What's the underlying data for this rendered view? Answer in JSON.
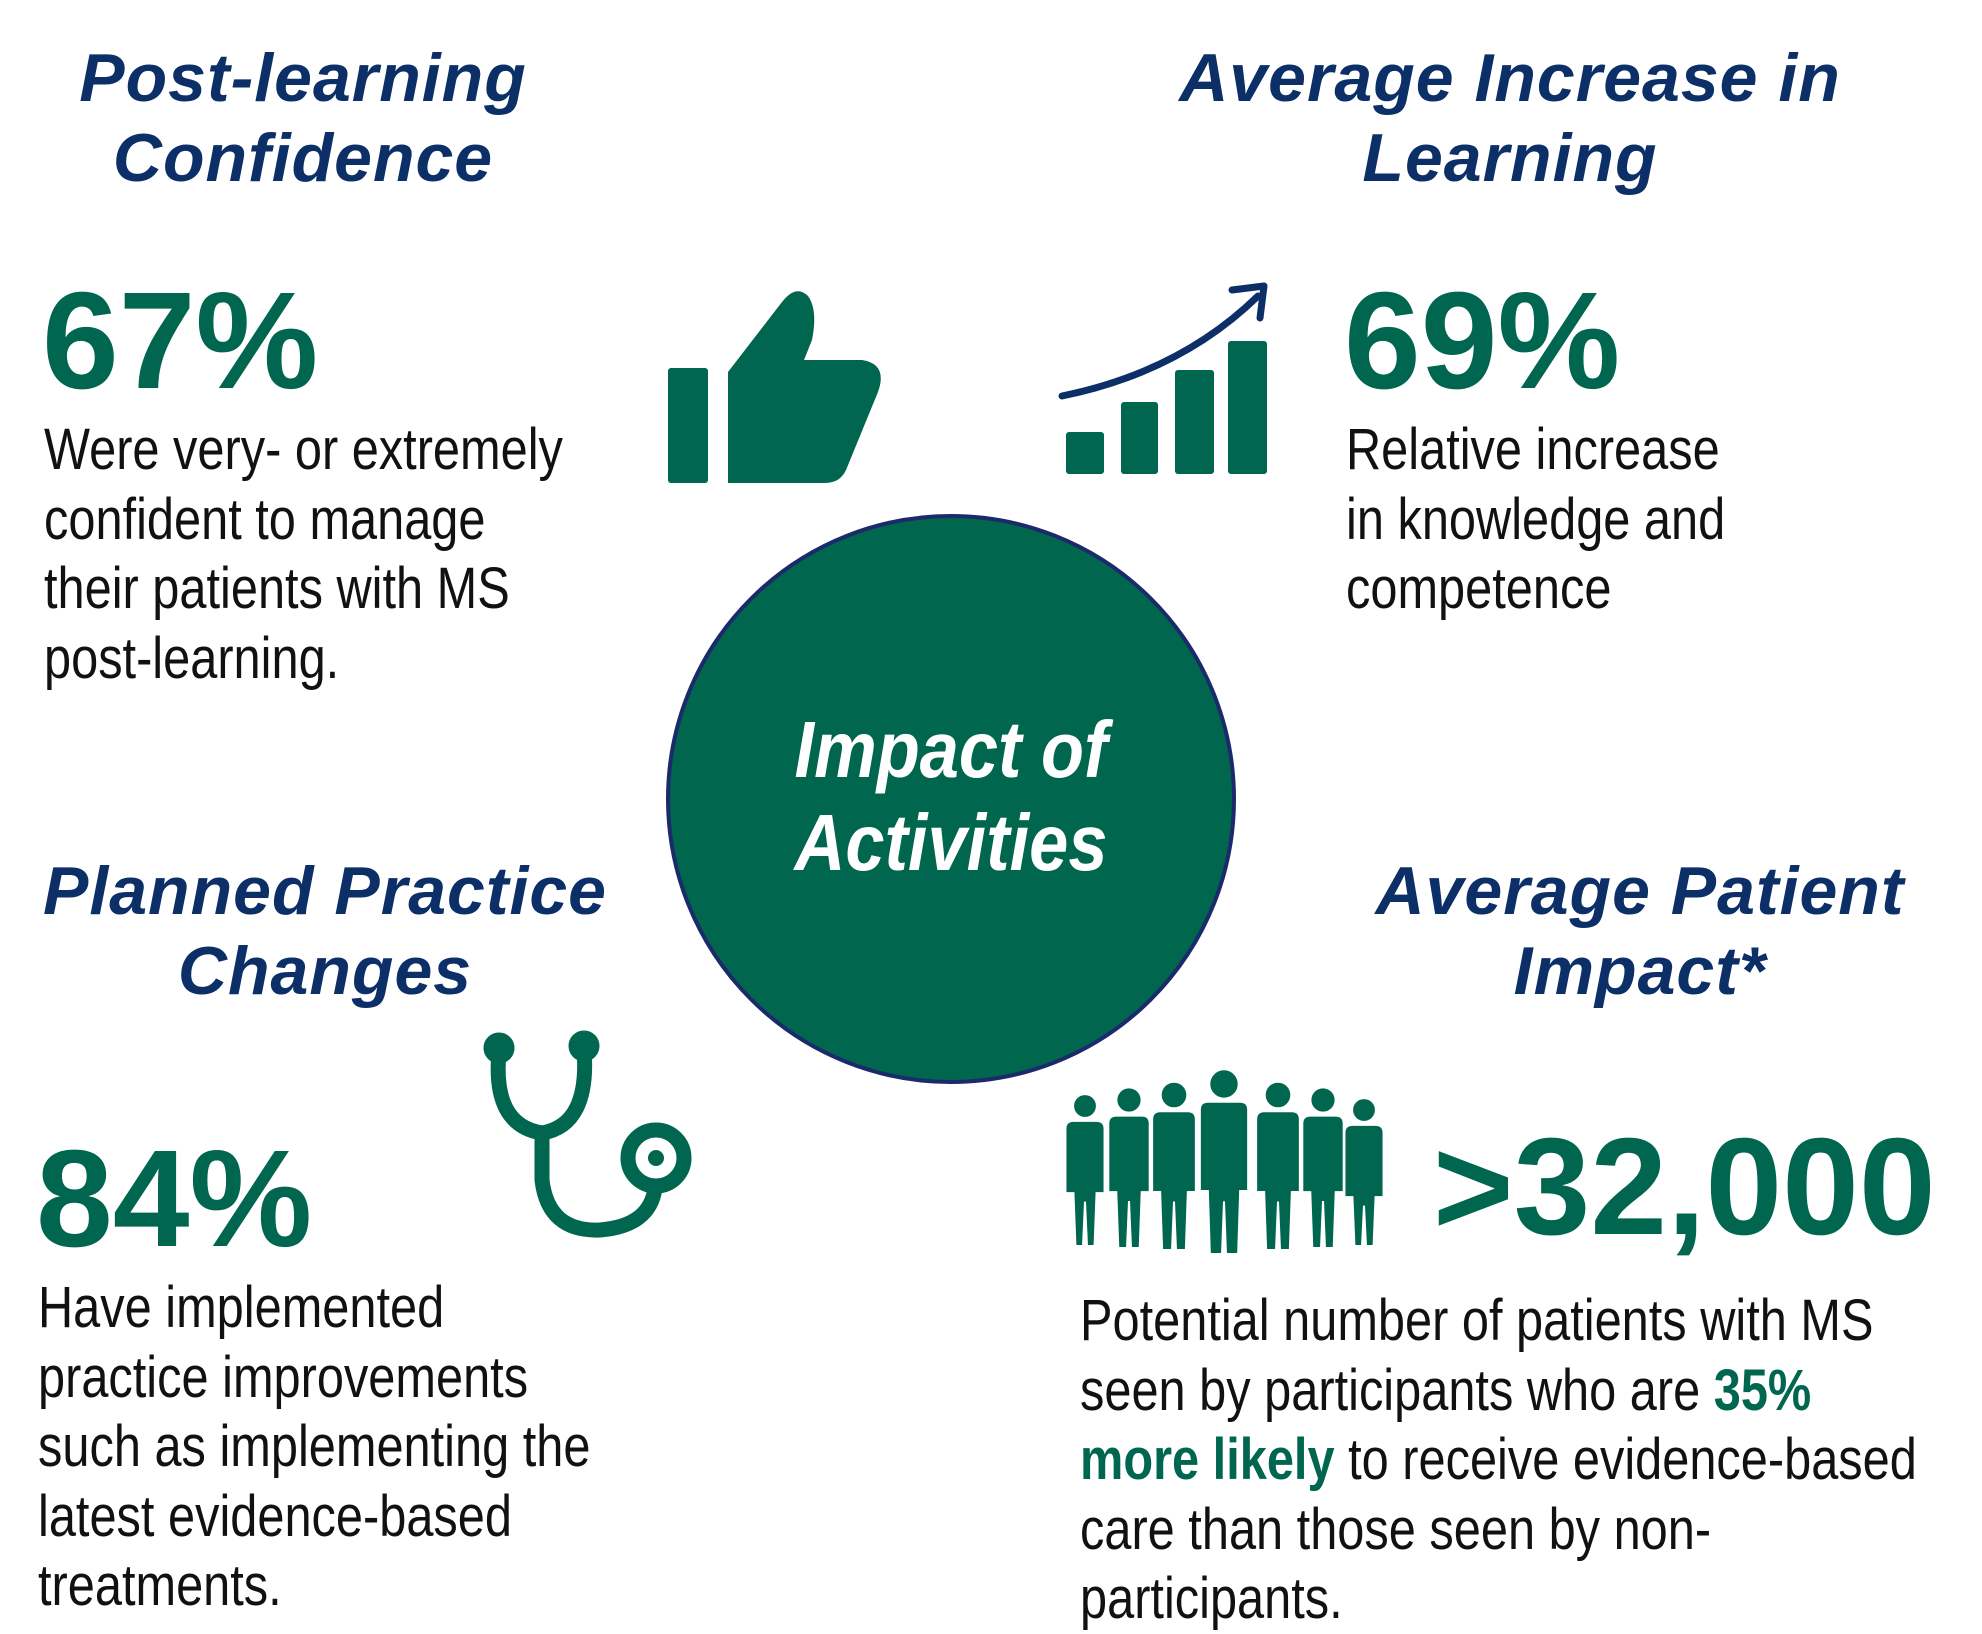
{
  "center": {
    "lines": [
      "Impact of",
      "Activities"
    ]
  },
  "sections": [
    {
      "title": [
        "Post-learning",
        "Confidence"
      ],
      "stat": "67%",
      "description": [
        "Were very- or extremely",
        "confident to manage",
        "their patients with MS",
        "post-learning."
      ]
    },
    {
      "title": [
        "Average Increase in",
        "Learning"
      ],
      "stat": "69%",
      "description": [
        "Relative increase",
        "in knowledge and",
        "competence"
      ]
    },
    {
      "title": [
        "Planned Practice",
        "Changes"
      ],
      "stat": "84%",
      "description": [
        "Have implemented",
        "practice improvements",
        "such as implementing the",
        "latest evidence-based",
        "treatments."
      ]
    },
    {
      "title": [
        "Average Patient",
        "Impact*"
      ],
      "stat": ">32,000",
      "description": [
        [
          "Potential number of patients with MS"
        ],
        [
          "seen by participants who are ",
          "35%"
        ],
        [
          "more likely",
          " to receive evidence-based"
        ],
        [
          "care than those seen by non-"
        ],
        [
          "participants."
        ]
      ]
    }
  ]
}
